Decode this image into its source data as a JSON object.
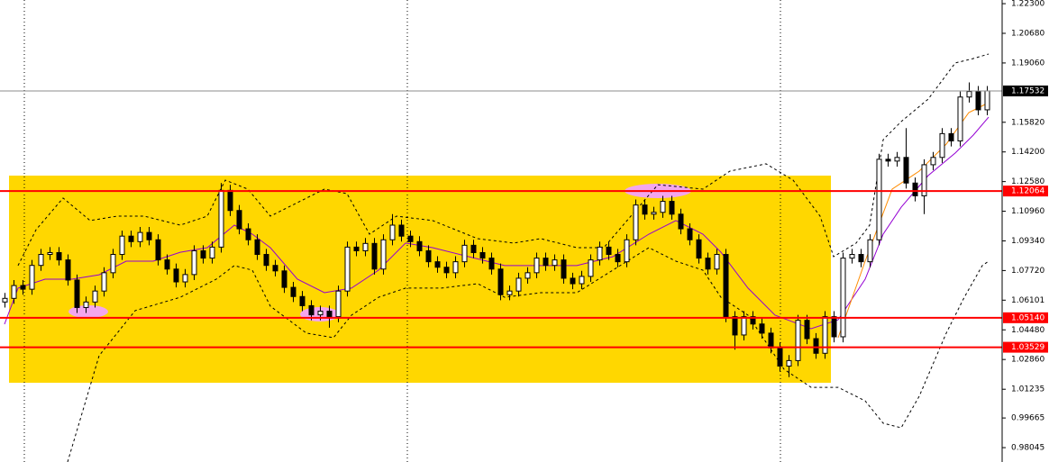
{
  "chart_data": {
    "type": "candlestick",
    "ylim": [
      0.9726,
      1.225
    ],
    "yticks": [
      {
        "value": 1.223,
        "label": "1.22300"
      },
      {
        "value": 1.2068,
        "label": "1.20680"
      },
      {
        "value": 1.1906,
        "label": "1.19060"
      },
      {
        "value": 1.1582,
        "label": "1.15820"
      },
      {
        "value": 1.142,
        "label": "1.14200"
      },
      {
        "value": 1.1258,
        "label": "1.12580"
      },
      {
        "value": 1.1096,
        "label": "1.10960"
      },
      {
        "value": 1.0934,
        "label": "1.09340"
      },
      {
        "value": 1.0772,
        "label": "1.07720"
      },
      1.06101,
      {
        "value": 1.0448,
        "label": "1.04480"
      },
      {
        "value": 1.0286,
        "label": "1.02860"
      },
      1.01235,
      0.99665,
      0.98045
    ],
    "up_color": "#ffffff",
    "down_color": "#000000",
    "open": [
      1.06,
      1.062,
      1.069,
      1.067,
      1.08,
      1.086,
      1.087,
      1.083,
      1.072,
      1.057,
      1.06,
      1.066,
      1.076,
      1.086,
      1.096,
      1.093,
      1.098,
      1.094,
      1.083,
      1.078,
      1.071,
      1.075,
      1.088,
      1.084,
      1.09,
      1.121,
      1.11,
      1.1,
      1.094,
      1.086,
      1.08,
      1.077,
      1.068,
      1.063,
      1.058,
      1.053,
      1.055,
      1.052,
      1.066,
      1.09,
      1.088,
      1.092,
      1.078,
      1.094,
      1.102,
      1.096,
      1.093,
      1.088,
      1.082,
      1.079,
      1.076,
      1.082,
      1.091,
      1.087,
      1.084,
      1.078,
      1.064,
      1.066,
      1.073,
      1.076,
      1.084,
      1.08,
      1.083,
      1.073,
      1.07,
      1.074,
      1.083,
      1.09,
      1.086,
      1.082,
      1.094,
      1.113,
      1.108,
      1.109,
      1.115,
      1.108,
      1.1,
      1.094,
      1.084,
      1.078,
      1.086,
      1.052,
      1.042,
      1.052,
      1.048,
      1.043,
      1.035,
      1.025,
      1.028,
      1.05,
      1.04,
      1.032,
      1.052,
      1.041,
      1.084,
      1.086,
      1.082,
      1.094,
      1.138,
      1.137,
      1.139,
      1.125,
      1.118,
      1.135,
      1.139,
      1.152,
      1.148,
      1.172,
      1.175,
      1.165
    ],
    "high": [
      1.065,
      1.072,
      1.072,
      1.083,
      1.089,
      1.09,
      1.09,
      1.086,
      1.075,
      1.063,
      1.069,
      1.079,
      1.089,
      1.099,
      1.099,
      1.101,
      1.101,
      1.097,
      1.086,
      1.081,
      1.078,
      1.091,
      1.091,
      1.093,
      1.125,
      1.124,
      1.113,
      1.103,
      1.097,
      1.089,
      1.083,
      1.08,
      1.071,
      1.066,
      1.061,
      1.058,
      1.058,
      1.069,
      1.093,
      1.093,
      1.095,
      1.095,
      1.097,
      1.108,
      1.105,
      1.099,
      1.096,
      1.091,
      1.085,
      1.082,
      1.085,
      1.094,
      1.094,
      1.09,
      1.087,
      1.081,
      1.069,
      1.076,
      1.079,
      1.087,
      1.087,
      1.086,
      1.086,
      1.076,
      1.077,
      1.086,
      1.093,
      1.093,
      1.089,
      1.097,
      1.116,
      1.116,
      1.112,
      1.118,
      1.118,
      1.111,
      1.103,
      1.097,
      1.087,
      1.089,
      1.089,
      1.055,
      1.055,
      1.055,
      1.051,
      1.046,
      1.038,
      1.031,
      1.053,
      1.053,
      1.043,
      1.055,
      1.055,
      1.087,
      1.089,
      1.089,
      1.097,
      1.141,
      1.141,
      1.142,
      1.155,
      1.128,
      1.138,
      1.142,
      1.155,
      1.155,
      1.175,
      1.18,
      1.178,
      1.178
    ],
    "low": [
      1.057,
      1.059,
      1.064,
      1.064,
      1.077,
      1.083,
      1.08,
      1.069,
      1.054,
      1.054,
      1.057,
      1.063,
      1.073,
      1.083,
      1.09,
      1.09,
      1.091,
      1.08,
      1.075,
      1.068,
      1.068,
      1.072,
      1.081,
      1.081,
      1.087,
      1.107,
      1.097,
      1.091,
      1.083,
      1.077,
      1.074,
      1.065,
      1.06,
      1.055,
      1.05,
      1.05,
      1.046,
      1.049,
      1.063,
      1.085,
      1.085,
      1.075,
      1.075,
      1.091,
      1.093,
      1.09,
      1.085,
      1.079,
      1.076,
      1.073,
      1.073,
      1.079,
      1.084,
      1.081,
      1.075,
      1.061,
      1.061,
      1.063,
      1.07,
      1.073,
      1.077,
      1.077,
      1.07,
      1.067,
      1.067,
      1.071,
      1.08,
      1.083,
      1.079,
      1.079,
      1.091,
      1.105,
      1.105,
      1.106,
      1.105,
      1.097,
      1.091,
      1.081,
      1.075,
      1.075,
      1.049,
      1.034,
      1.039,
      1.045,
      1.04,
      1.032,
      1.022,
      1.019,
      1.025,
      1.037,
      1.029,
      1.029,
      1.038,
      1.038,
      1.081,
      1.079,
      1.079,
      1.091,
      1.134,
      1.134,
      1.122,
      1.115,
      1.108,
      1.132,
      1.136,
      1.145,
      1.145,
      1.169,
      1.162,
      1.162
    ],
    "close": [
      1.062,
      1.069,
      1.067,
      1.08,
      1.086,
      1.087,
      1.083,
      1.072,
      1.057,
      1.06,
      1.066,
      1.076,
      1.086,
      1.096,
      1.093,
      1.098,
      1.094,
      1.083,
      1.078,
      1.071,
      1.075,
      1.088,
      1.084,
      1.09,
      1.121,
      1.11,
      1.1,
      1.094,
      1.086,
      1.08,
      1.077,
      1.068,
      1.063,
      1.058,
      1.053,
      1.055,
      1.052,
      1.066,
      1.09,
      1.088,
      1.092,
      1.078,
      1.094,
      1.102,
      1.096,
      1.093,
      1.088,
      1.082,
      1.079,
      1.076,
      1.082,
      1.091,
      1.087,
      1.084,
      1.078,
      1.064,
      1.066,
      1.073,
      1.076,
      1.084,
      1.08,
      1.083,
      1.073,
      1.07,
      1.074,
      1.083,
      1.09,
      1.086,
      1.082,
      1.094,
      1.113,
      1.108,
      1.109,
      1.115,
      1.108,
      1.1,
      1.094,
      1.084,
      1.078,
      1.086,
      1.052,
      1.042,
      1.052,
      1.048,
      1.043,
      1.035,
      1.025,
      1.028,
      1.05,
      1.04,
      1.032,
      1.052,
      1.041,
      1.084,
      1.086,
      1.082,
      1.094,
      1.138,
      1.137,
      1.139,
      1.125,
      1.118,
      1.135,
      1.139,
      1.152,
      1.148,
      1.172,
      1.175,
      1.165,
      1.17532
    ],
    "lines": [
      {
        "color": "#000000",
        "dash": true,
        "x": [
          1.5,
          3.5,
          6.5,
          9.5,
          12.5,
          15.5,
          19.5,
          22.5,
          24.5,
          27,
          29.5,
          32.5,
          35.5,
          38,
          40.5,
          43.5,
          47.5,
          52.5,
          56.5,
          59.5,
          63.5,
          66.5,
          69.5,
          72.5,
          77.5,
          80.5,
          84.5,
          87.5,
          90.5,
          92,
          94.5,
          96,
          97.5,
          99.5,
          102.5,
          105.5,
          107.5,
          109.2
        ],
        "values": [
          1.0799,
          1.0995,
          1.1168,
          1.1045,
          1.1069,
          1.1069,
          1.102,
          1.1069,
          1.1266,
          1.1217,
          1.1069,
          1.1143,
          1.1217,
          1.1192,
          1.0971,
          1.1069,
          1.1045,
          1.0946,
          1.0922,
          1.0946,
          1.0897,
          1.0897,
          1.1069,
          1.1241,
          1.1217,
          1.1315,
          1.1355,
          1.1266,
          1.1069,
          1.0848,
          1.0922,
          1.102,
          1.1487,
          1.1586,
          1.1709,
          1.1906,
          1.193,
          1.1955
        ]
      },
      {
        "color": "#000000",
        "dash": true,
        "x": [
          7,
          10.5,
          14.5,
          19.5,
          23.5,
          25.5,
          27.5,
          29.5,
          33.5,
          36.5,
          38.5,
          41.5,
          44.5,
          48.5,
          52.5,
          55.5,
          59.5,
          63.5,
          67.5,
          71.5,
          74.5,
          77.5,
          79.5,
          82.5,
          86.5,
          89.5,
          92.5,
          95.5,
          97.5,
          99.5,
          101.5,
          104.5,
          106.5,
          108.5,
          109.2
        ],
        "values": [
          0.9726,
          1.0307,
          1.0553,
          1.0626,
          1.0725,
          1.0799,
          1.0774,
          1.0577,
          1.043,
          1.0405,
          1.0528,
          1.0626,
          1.0676,
          1.0676,
          1.07,
          1.0626,
          1.0651,
          1.0651,
          1.0774,
          1.0897,
          1.0823,
          1.0774,
          1.0626,
          1.0528,
          1.0233,
          1.0134,
          1.0134,
          1.006,
          0.9938,
          0.9913,
          1.0085,
          1.043,
          1.0626,
          1.0799,
          1.0823
        ]
      },
      {
        "color": "#9400d3",
        "dash": false,
        "x": [
          0,
          1.5,
          4.5,
          7.5,
          10.5,
          13.5,
          16.5,
          19.5,
          22.5,
          25.5,
          27.5,
          29.5,
          32.5,
          35.5,
          38.5,
          41.5,
          44.5,
          47.5,
          51.5,
          55.5,
          59.5,
          63.5,
          67.5,
          71.5,
          74.5,
          77.5,
          79.5,
          82.5,
          85.5,
          89.5,
          92.5,
          95.5,
          97.5,
          99.5,
          102.5,
          105.5,
          107.5,
          109.2
        ],
        "values": [
          1.0479,
          1.0676,
          1.0725,
          1.0725,
          1.0749,
          1.0823,
          1.0823,
          1.0872,
          1.0897,
          1.102,
          1.0971,
          1.0897,
          1.0725,
          1.0651,
          1.0676,
          1.0774,
          1.0922,
          1.0897,
          1.0848,
          1.0799,
          1.0799,
          1.0799,
          1.0848,
          1.0971,
          1.1045,
          1.0971,
          1.0872,
          1.0676,
          1.0528,
          1.0454,
          1.0503,
          1.0725,
          1.0971,
          1.1118,
          1.1291,
          1.1414,
          1.1512,
          1.161
        ]
      },
      {
        "color": "#ff8c00",
        "dash": false,
        "x": [
          92.5,
          95.5,
          98.5,
          101.5,
          104.5,
          107,
          109
        ],
        "values": [
          1.0405,
          1.0823,
          1.1217,
          1.1315,
          1.1463,
          1.1635,
          1.1684
        ]
      }
    ],
    "levels": [
      1.12064,
      {
        "value": 1.0514,
        "label": "1.05140"
      },
      1.03529
    ],
    "level_color": "#ff0000",
    "last_price": 1.17532
  }
}
